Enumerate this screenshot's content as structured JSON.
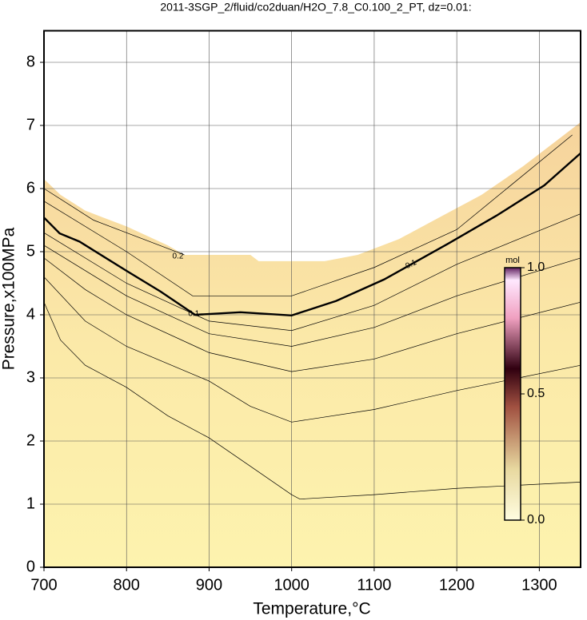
{
  "chart_data": {
    "type": "contour",
    "title": "2011-3SGP_2/fluid/co2duan/H2O_7.8_C0.100_2_PT, dz=0.01:",
    "x_label": "Temperature,°C",
    "y_label": "Pressure,x100MPa",
    "xlim": [
      700,
      1350
    ],
    "xticks": [
      700,
      800,
      900,
      1000,
      1100,
      1200,
      1300
    ],
    "ylim": [
      0,
      8.5
    ],
    "yticks": [
      0,
      1,
      2,
      3,
      4,
      5,
      6,
      7,
      8
    ],
    "grid": true,
    "region": {
      "x": [
        700,
        720,
        750,
        800,
        850,
        870,
        950,
        960,
        1040,
        1080,
        1130,
        1180,
        1230,
        1280,
        1320,
        1350
      ],
      "top": [
        6.15,
        5.9,
        5.65,
        5.4,
        5.1,
        4.95,
        4.95,
        4.85,
        4.85,
        4.95,
        5.2,
        5.55,
        5.9,
        6.35,
        6.75,
        7.05
      ]
    },
    "contours": [
      {
        "x": [
          700,
          720,
          750,
          800,
          850,
          900,
          950,
          1000,
          1010,
          1100,
          1200,
          1350
        ],
        "y": [
          4.2,
          3.6,
          3.2,
          2.85,
          2.4,
          2.05,
          1.6,
          1.15,
          1.08,
          1.15,
          1.25,
          1.35
        ]
      },
      {
        "x": [
          700,
          750,
          800,
          900,
          950,
          1000,
          1100,
          1200,
          1350
        ],
        "y": [
          4.6,
          3.9,
          3.5,
          2.95,
          2.55,
          2.3,
          2.5,
          2.8,
          3.2
        ]
      },
      {
        "x": [
          700,
          750,
          800,
          900,
          1000,
          1100,
          1200,
          1350
        ],
        "y": [
          4.9,
          4.4,
          4.0,
          3.4,
          3.1,
          3.3,
          3.7,
          4.2
        ]
      },
      {
        "x": [
          700,
          800,
          900,
          1000,
          1100,
          1200,
          1350
        ],
        "y": [
          5.1,
          4.3,
          3.7,
          3.5,
          3.8,
          4.3,
          4.9
        ]
      },
      {
        "x": [
          700,
          800,
          900,
          1000,
          1100,
          1200,
          1350
        ],
        "y": [
          5.3,
          4.5,
          3.9,
          3.75,
          4.15,
          4.8,
          5.6
        ]
      },
      {
        "label": "0.1",
        "x": [
          700,
          719,
          743,
          802,
          841,
          883,
          938,
          1000,
          1054,
          1112,
          1190,
          1248,
          1306,
          1350
        ],
        "y": [
          5.54,
          5.29,
          5.16,
          4.68,
          4.37,
          4.0,
          4.04,
          3.99,
          4.22,
          4.56,
          5.13,
          5.57,
          6.05,
          6.56
        ]
      },
      {
        "x": [
          700,
          800,
          880,
          1000,
          1100,
          1200,
          1340
        ],
        "y": [
          5.8,
          5.0,
          4.3,
          4.3,
          4.75,
          5.35,
          6.85
        ]
      },
      {
        "label": "0.2",
        "x": [
          700,
          760,
          820,
          870
        ],
        "y": [
          6.0,
          5.5,
          5.2,
          4.95
        ]
      }
    ],
    "colorbar": {
      "label": "mol",
      "lim": [
        0,
        1
      ],
      "ticks": [
        {
          "value": 0,
          "label": "0.0"
        },
        {
          "value": 0.5,
          "label": "0.5"
        },
        {
          "value": 1,
          "label": "1.0"
        }
      ]
    }
  }
}
